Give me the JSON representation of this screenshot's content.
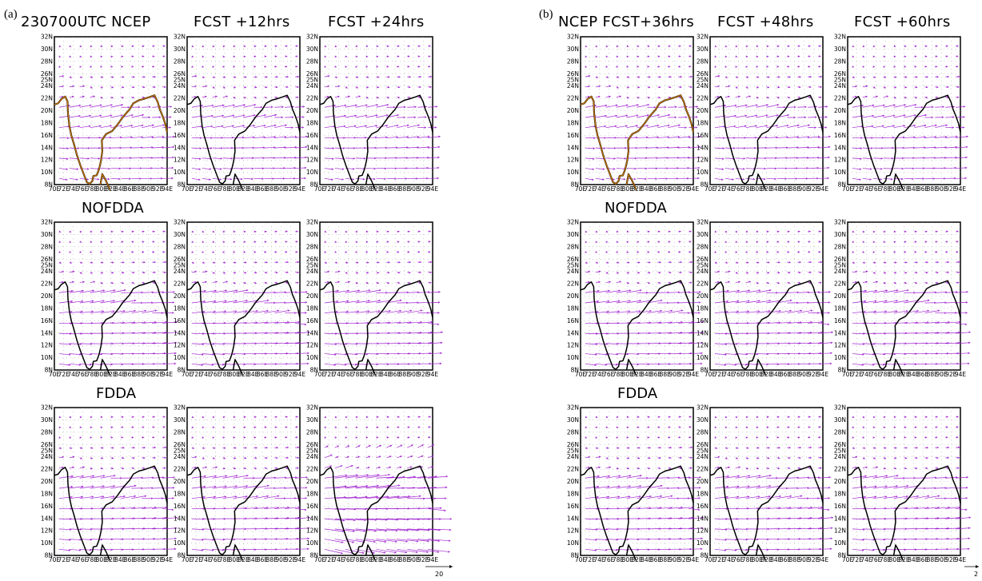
{
  "figure": {
    "panels": [
      {
        "letter": "(a)",
        "column_titles": [
          "230700UTC  NCEP",
          "FCST  +12hrs",
          "FCST  +24hrs"
        ],
        "row_titles": [
          "",
          "NOFDDA",
          "FDDA"
        ],
        "reference_vector_label": "20"
      },
      {
        "letter": "(b)",
        "column_titles": [
          "NCEP  FCST+36hrs",
          "FCST  +48hrs",
          "FCST  +60hrs"
        ],
        "row_titles": [
          "",
          "NOFDDA",
          "FDDA"
        ],
        "reference_vector_label": "2"
      }
    ],
    "latitude_ticks": [
      "8N",
      "10N",
      "12N",
      "14N",
      "16N",
      "18N",
      "20N",
      "22N",
      "24N",
      "25N",
      "26N",
      "28N",
      "30N",
      "32N"
    ],
    "latitude_values": [
      8,
      10,
      12,
      14,
      16,
      18,
      20,
      22,
      24,
      25,
      26,
      28,
      30,
      32
    ],
    "longitude_ticks": [
      "70E",
      "72E",
      "74E",
      "76E",
      "78E",
      "80E",
      "82E",
      "84E",
      "86E",
      "88E",
      "90E",
      "92E",
      "94E"
    ],
    "longitude_values": [
      70,
      72,
      74,
      76,
      78,
      80,
      82,
      84,
      86,
      88,
      90,
      92,
      94
    ],
    "lat_range": [
      8,
      32
    ],
    "lon_range": [
      70,
      94
    ],
    "colors": {
      "vector": "#a020d0",
      "coastline": "#000000",
      "ncep_coastline": "#c8740a",
      "grid": "#888888"
    }
  }
}
